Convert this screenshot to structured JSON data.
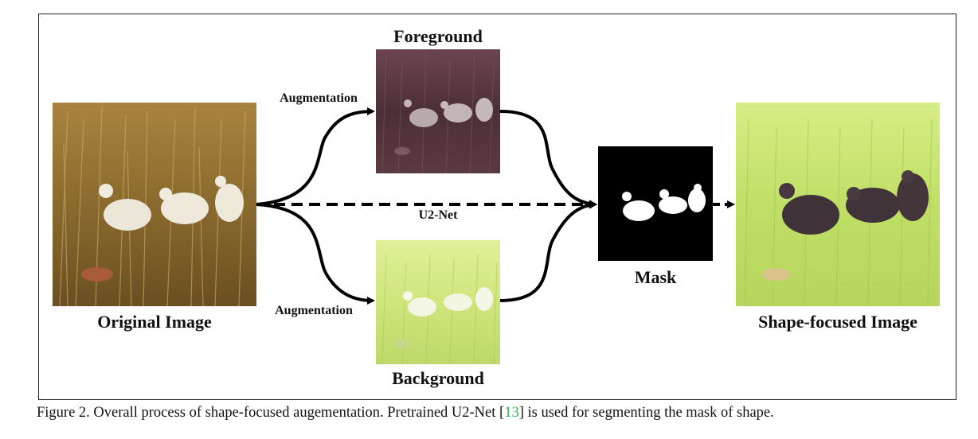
{
  "labels": {
    "original": "Original Image",
    "foreground": "Foreground",
    "background": "Background",
    "mask": "Mask",
    "shape_focused": "Shape-focused Image",
    "augmentation_top": "Augmentation",
    "augmentation_bottom": "Augmentation",
    "u2net": "U2-Net"
  },
  "caption": {
    "prefix": "Figure 2. Overall process of shape-focused augementation. Pretrained U2-Net [",
    "citation": "13",
    "suffix": "] is used for segmenting the mask of shape."
  }
}
